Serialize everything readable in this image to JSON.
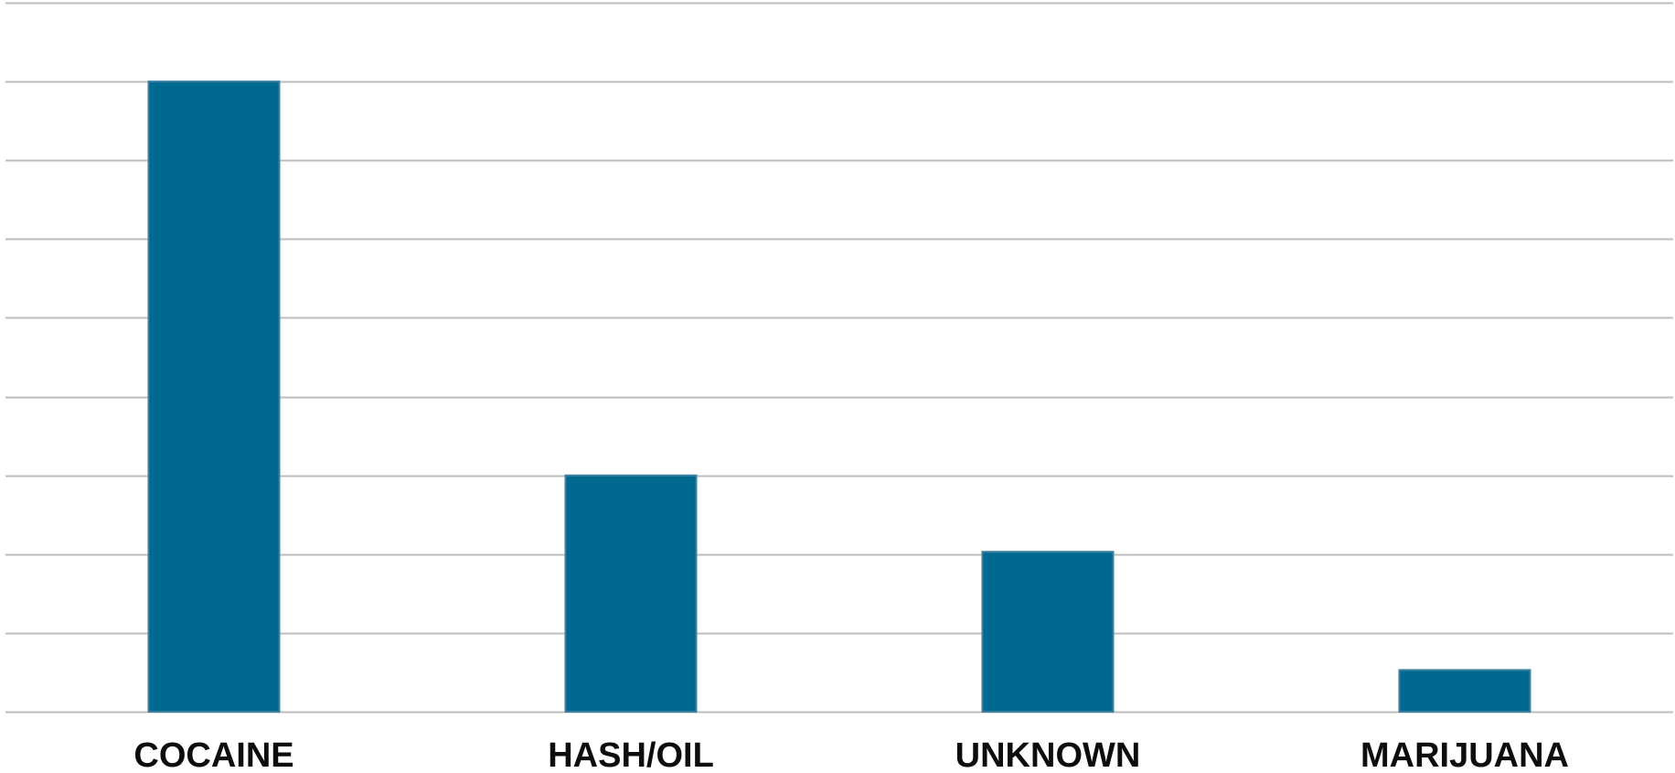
{
  "chart_data": {
    "type": "bar",
    "title": "",
    "xlabel": "",
    "ylabel": "",
    "categories": [
      "COCAINE",
      "HASH/OIL",
      "UNKNOWN",
      "MARIJUANA"
    ],
    "values": [
      8.0,
      3.0,
      2.03,
      0.53
    ],
    "ylim": [
      0,
      9
    ],
    "gridlines": 10,
    "y_tick_labels_shown": false,
    "grid": true,
    "legend": "none"
  },
  "colors": {
    "bar_fill": "#006990",
    "bar_stroke": "#3c7fa0",
    "grid": "#bdbdbd",
    "label": "#0d0d0d",
    "background": "#ffffff"
  }
}
